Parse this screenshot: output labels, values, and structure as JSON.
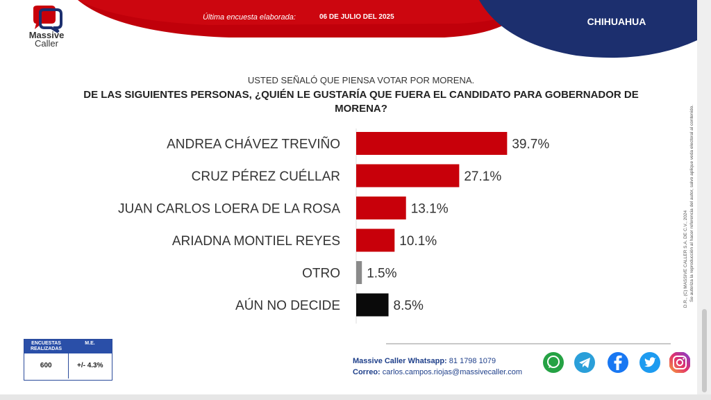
{
  "brand": {
    "name": "Massive Caller",
    "logo_line1": "Massive",
    "logo_line2": "Caller"
  },
  "header": {
    "survey_label": "Última encuesta elaborada:",
    "survey_date": "06 DE JULIO DEL 2025",
    "region": "CHIHUAHUA"
  },
  "question": {
    "subtitle": "USTED SEÑALÓ QUE PIENSA VOTAR POR MORENA.",
    "title_line1": "DE LAS SIGUIENTES PERSONAS, ¿QUIÉN LE GUSTARÍA QUE FUERA EL CANDIDATO PARA GOBERNADOR DE",
    "title_line2": "MORENA?"
  },
  "chart_data": {
    "type": "bar",
    "orientation": "horizontal",
    "categories": [
      "ANDREA CHÁVEZ TREVIÑO",
      "CRUZ PÉREZ CUÉLLAR",
      "JUAN CARLOS LOERA DE LA ROSA",
      "ARIADNA MONTIEL REYES",
      "OTRO",
      "AÚN NO DECIDE"
    ],
    "values": [
      39.7,
      27.1,
      13.1,
      10.1,
      1.5,
      8.5
    ],
    "value_labels": [
      "39.7%",
      "27.1%",
      "13.1%",
      "10.1%",
      "1.5%",
      "8.5%"
    ],
    "colors": [
      "#c8000a",
      "#c8000a",
      "#c8000a",
      "#c8000a",
      "#8a8a8a",
      "#0a0a0a"
    ],
    "title": "",
    "xlabel": "",
    "ylabel": "",
    "grid": false,
    "legend": "none"
  },
  "copyright": {
    "line1": "D.R., (C) MASSIVE CALLER S.A. DE C.V., 2024",
    "line2": "Se autoriza la reproducción al hacer referencia del autor, salvo aplique veda electoral al contenido."
  },
  "stats": {
    "col1_header": "ENCUESTAS REALIZADAS",
    "col2_header": "M.E.",
    "col1_value": "600",
    "col2_value": "+/- 4.3%"
  },
  "contact": {
    "whatsapp_label": "Massive Caller Whatsapp:",
    "whatsapp_value": "81 1798 1079",
    "email_label": "Correo:",
    "email_value": "carlos.campos.riojas@massivecaller.com"
  },
  "social_icons": [
    "whatsapp-icon",
    "telegram-icon",
    "facebook-icon",
    "twitter-icon",
    "instagram-icon"
  ],
  "theme": {
    "red": "#c8000a",
    "navy": "#1c2f6e",
    "blue": "#2a4fa8"
  }
}
